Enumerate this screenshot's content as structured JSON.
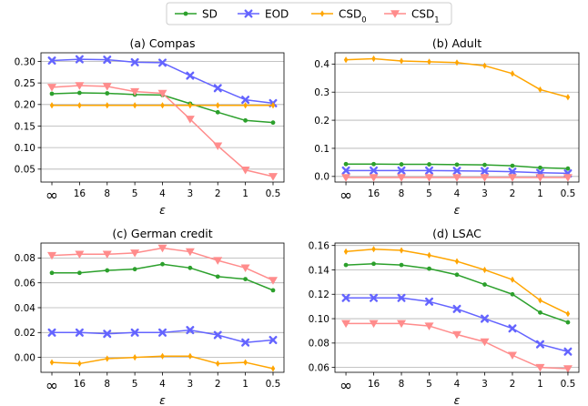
{
  "legend": {
    "placement": "top-center",
    "entries": [
      {
        "label": "SD",
        "color": "#2ca02c",
        "marker": "circle"
      },
      {
        "label": "EOD",
        "color": "#6464ff",
        "marker": "x"
      },
      {
        "label": "CSD₀",
        "color": "#ffa500",
        "marker": "diamond"
      },
      {
        "label": "CSD₁",
        "color": "#ff8c8c",
        "marker": "triangle-down"
      }
    ]
  },
  "x_tick_labels": [
    "∞",
    "16",
    "8",
    "5",
    "4",
    "3",
    "2",
    "1",
    "0.5"
  ],
  "xlabel": "ε",
  "chart_data": [
    {
      "type": "line",
      "title": "(a) Compas",
      "xlabel": "ε",
      "ylabel": "",
      "grid": "y",
      "categories": [
        "∞",
        "16",
        "8",
        "5",
        "4",
        "3",
        "2",
        "1",
        "0.5"
      ],
      "ylim": [
        0.02,
        0.32
      ],
      "yticks": [
        0.05,
        0.1,
        0.15,
        0.2,
        0.25,
        0.3
      ],
      "ytick_labels": [
        "0.05",
        "0.10",
        "0.15",
        "0.20",
        "0.25",
        "0.30"
      ],
      "series": [
        {
          "name": "SD",
          "values": [
            0.225,
            0.227,
            0.226,
            0.223,
            0.222,
            0.202,
            0.182,
            0.163,
            0.158
          ]
        },
        {
          "name": "EOD",
          "values": [
            0.302,
            0.305,
            0.304,
            0.298,
            0.297,
            0.267,
            0.238,
            0.211,
            0.203
          ]
        },
        {
          "name": "CSD₀",
          "values": [
            0.198,
            0.198,
            0.198,
            0.198,
            0.198,
            0.198,
            0.198,
            0.198,
            0.198
          ]
        },
        {
          "name": "CSD₁",
          "values": [
            0.24,
            0.244,
            0.242,
            0.23,
            0.226,
            0.166,
            0.104,
            0.048,
            0.033
          ]
        }
      ]
    },
    {
      "type": "line",
      "title": "(b) Adult",
      "xlabel": "ε",
      "ylabel": "",
      "grid": "y",
      "categories": [
        "∞",
        "16",
        "8",
        "5",
        "4",
        "3",
        "2",
        "1",
        "0.5"
      ],
      "ylim": [
        -0.02,
        0.44
      ],
      "yticks": [
        0.0,
        0.1,
        0.2,
        0.3,
        0.4
      ],
      "ytick_labels": [
        "0.0",
        "0.1",
        "0.2",
        "0.3",
        "0.4"
      ],
      "series": [
        {
          "name": "SD",
          "values": [
            0.044,
            0.044,
            0.043,
            0.043,
            0.042,
            0.041,
            0.038,
            0.031,
            0.028
          ]
        },
        {
          "name": "EOD",
          "values": [
            0.021,
            0.021,
            0.021,
            0.021,
            0.02,
            0.019,
            0.017,
            0.013,
            0.011
          ]
        },
        {
          "name": "CSD₀",
          "values": [
            0.415,
            0.419,
            0.411,
            0.408,
            0.405,
            0.394,
            0.366,
            0.309,
            0.282
          ]
        },
        {
          "name": "CSD₁",
          "values": [
            -0.004,
            -0.004,
            -0.004,
            -0.004,
            -0.004,
            -0.004,
            -0.004,
            -0.004,
            -0.004
          ]
        }
      ]
    },
    {
      "type": "line",
      "title": "(c) German credit",
      "xlabel": "ε",
      "ylabel": "",
      "grid": "y",
      "categories": [
        "∞",
        "16",
        "8",
        "5",
        "4",
        "3",
        "2",
        "1",
        "0.5"
      ],
      "ylim": [
        -0.012,
        0.092
      ],
      "yticks": [
        0.0,
        0.02,
        0.04,
        0.06,
        0.08
      ],
      "ytick_labels": [
        "0.00",
        "0.02",
        "0.04",
        "0.06",
        "0.08"
      ],
      "series": [
        {
          "name": "SD",
          "values": [
            0.068,
            0.068,
            0.07,
            0.071,
            0.075,
            0.072,
            0.065,
            0.063,
            0.054
          ]
        },
        {
          "name": "EOD",
          "values": [
            0.02,
            0.02,
            0.019,
            0.02,
            0.02,
            0.022,
            0.018,
            0.012,
            0.014
          ]
        },
        {
          "name": "CSD₀",
          "values": [
            -0.004,
            -0.005,
            -0.001,
            0.0,
            0.001,
            0.001,
            -0.005,
            -0.004,
            -0.009
          ]
        },
        {
          "name": "CSD₁",
          "values": [
            0.082,
            0.083,
            0.083,
            0.084,
            0.088,
            0.085,
            0.078,
            0.072,
            0.062
          ]
        }
      ]
    },
    {
      "type": "line",
      "title": "(d) LSAC",
      "xlabel": "ε",
      "ylabel": "",
      "grid": "y",
      "categories": [
        "∞",
        "16",
        "8",
        "5",
        "4",
        "3",
        "2",
        "1",
        "0.5"
      ],
      "ylim": [
        0.056,
        0.162
      ],
      "yticks": [
        0.06,
        0.08,
        0.1,
        0.12,
        0.14,
        0.16
      ],
      "ytick_labels": [
        "0.06",
        "0.08",
        "0.10",
        "0.12",
        "0.14",
        "0.16"
      ],
      "series": [
        {
          "name": "SD",
          "values": [
            0.144,
            0.145,
            0.144,
            0.141,
            0.136,
            0.128,
            0.12,
            0.105,
            0.097
          ]
        },
        {
          "name": "EOD",
          "values": [
            0.117,
            0.117,
            0.117,
            0.114,
            0.108,
            0.1,
            0.092,
            0.079,
            0.073
          ]
        },
        {
          "name": "CSD₀",
          "values": [
            0.155,
            0.157,
            0.156,
            0.152,
            0.147,
            0.14,
            0.132,
            0.115,
            0.104
          ]
        },
        {
          "name": "CSD₁",
          "values": [
            0.096,
            0.096,
            0.096,
            0.094,
            0.087,
            0.081,
            0.07,
            0.06,
            0.059
          ]
        }
      ]
    }
  ]
}
